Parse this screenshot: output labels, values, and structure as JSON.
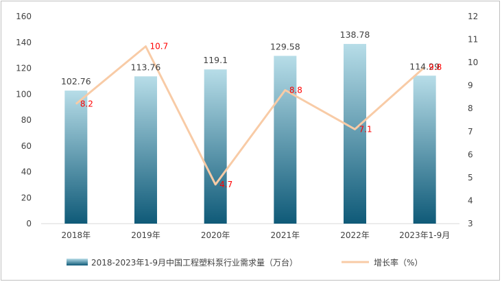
{
  "chart_data": {
    "type": "bar+line",
    "categories": [
      "2018年",
      "2019年",
      "2020年",
      "2021年",
      "2022年",
      "2023年1-9月"
    ],
    "series": [
      {
        "name": "2018-2023年1-9月中国工程塑料泵行业需求量（万台）",
        "type": "bar",
        "axis": "left",
        "values": [
          102.76,
          113.76,
          119.1,
          129.58,
          138.78,
          114.29
        ],
        "labels": [
          "102.76",
          "113.76",
          "119.1",
          "129.58",
          "138.78",
          "114.29"
        ]
      },
      {
        "name": "增长率（%）",
        "type": "line",
        "axis": "right",
        "values": [
          8.2,
          10.7,
          4.7,
          8.8,
          7.1,
          9.8
        ],
        "labels": [
          "8.2",
          "10.7",
          "4.7",
          "8.8",
          "7.1",
          "9.8"
        ]
      }
    ],
    "y_left": {
      "min": 0,
      "max": 160,
      "ticks": [
        "0",
        "20",
        "40",
        "60",
        "80",
        "100",
        "120",
        "140",
        "160"
      ]
    },
    "y_right": {
      "min": 3,
      "max": 12,
      "ticks": [
        "3",
        "4",
        "5",
        "6",
        "7",
        "8",
        "9",
        "10",
        "11",
        "12"
      ]
    },
    "grid": false,
    "legend_position": "bottom",
    "colors": {
      "bar_top": "#b7dde8",
      "bar_bottom": "#0f5a78",
      "line": "#f8cba6",
      "rate_label": "#ff0000",
      "axis": "#d9d9d9",
      "text": "#404040"
    }
  }
}
